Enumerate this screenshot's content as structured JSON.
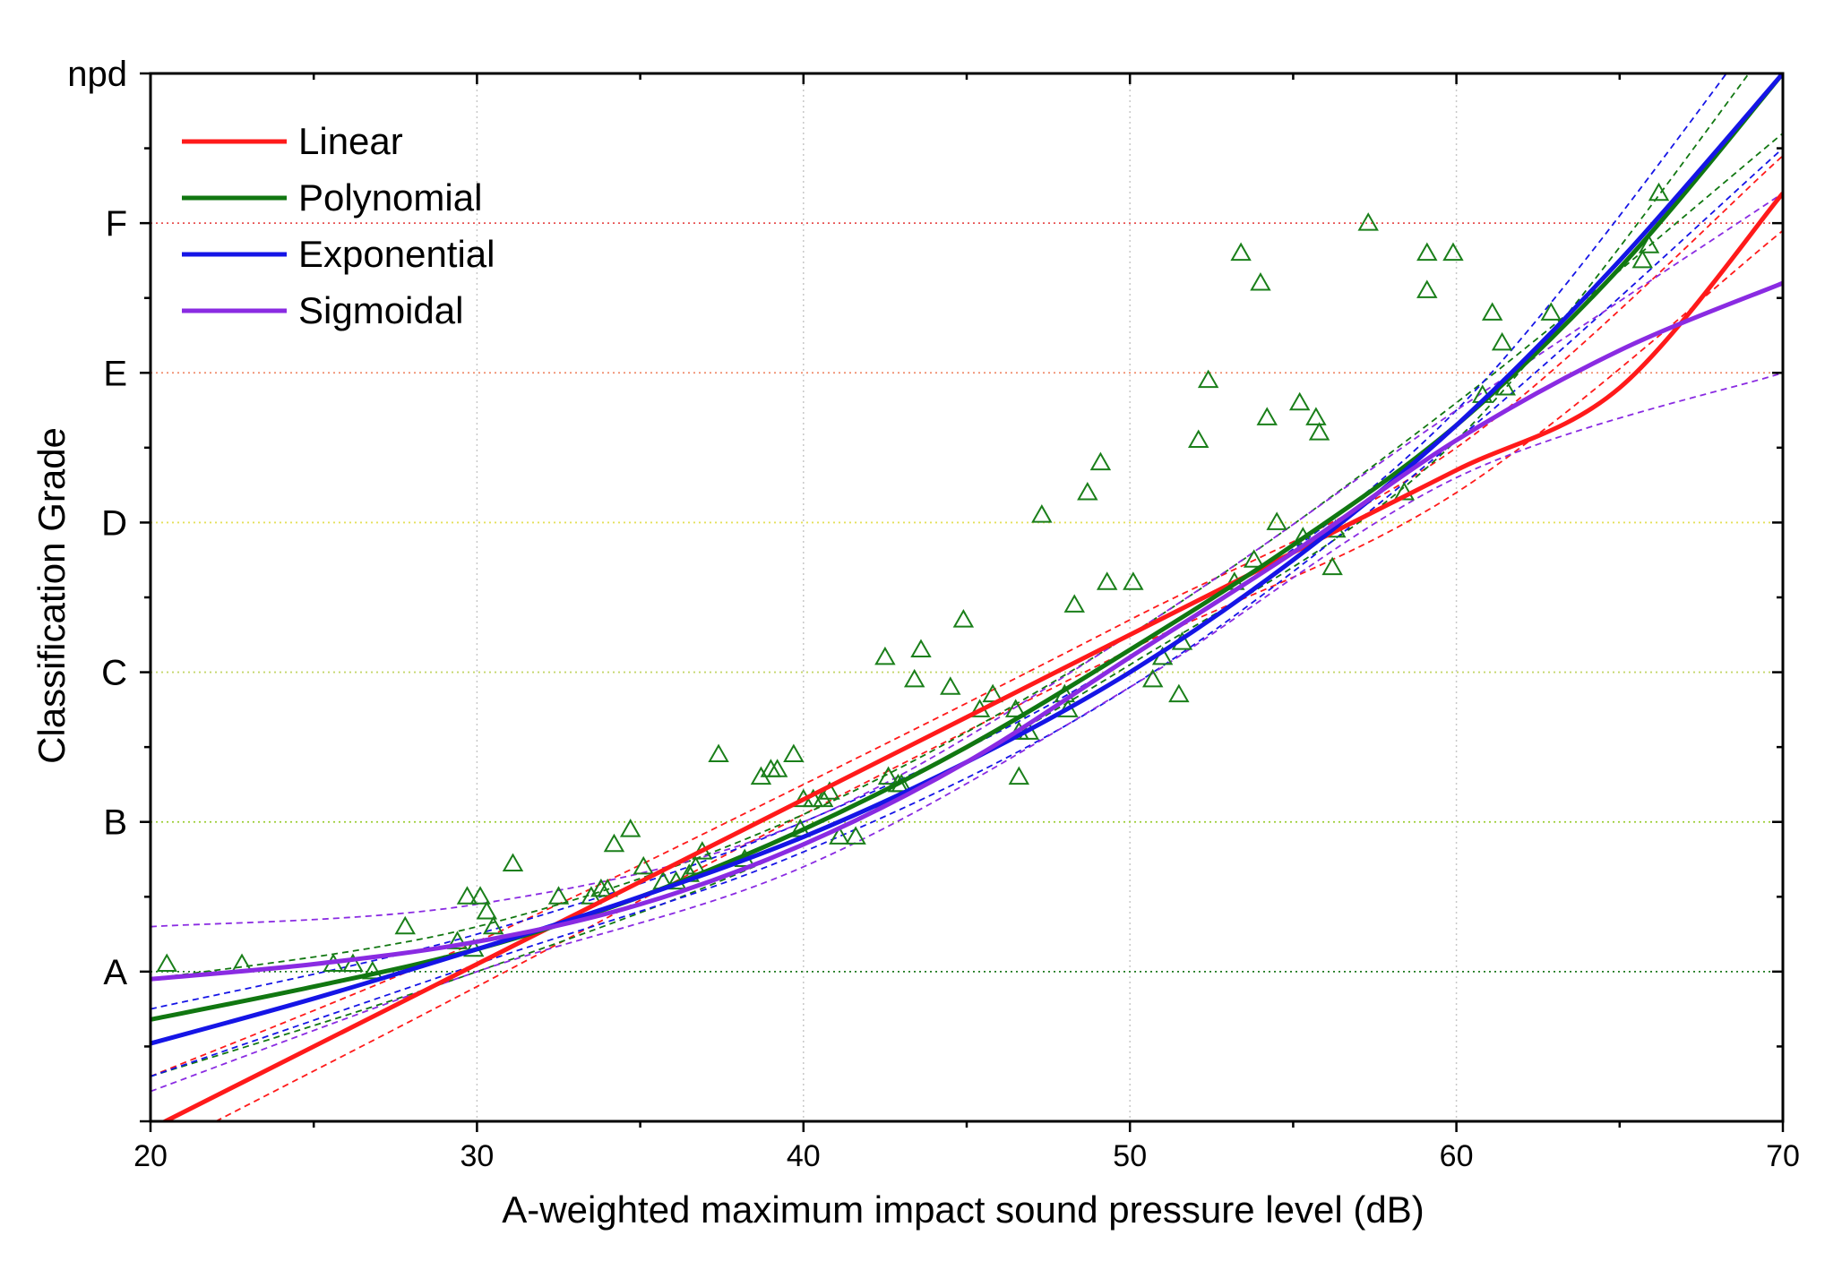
{
  "chart_data": {
    "type": "scatter",
    "xlabel": "A-weighted maximum impact sound pressure level (dB)",
    "ylabel": "Classification Grade",
    "xlim": [
      20,
      70
    ],
    "ylim": [
      0,
      7
    ],
    "x_ticks": [
      20,
      30,
      40,
      50,
      60,
      70
    ],
    "x_tick_labels": [
      "20",
      "30",
      "40",
      "50",
      "60",
      "70"
    ],
    "y_ticks": [
      1,
      2,
      3,
      4,
      5,
      6,
      7
    ],
    "y_tick_labels": [
      "A",
      "B",
      "C",
      "D",
      "E",
      "F",
      "npd"
    ],
    "grid": "dotted; horizontal lines colored per grade",
    "legend_position": "top-left",
    "colors": {
      "points": "#1a7f1a",
      "grid_vertical": "#c8c8c8",
      "grade_A": "#1f7a1f",
      "grade_B": "#9acd32",
      "grade_C": "#c5d66b",
      "grade_D": "#e5e05a",
      "grade_E": "#f08a6a",
      "grade_F": "#e85050"
    },
    "series": [
      {
        "name": "Linear",
        "kind": "fit",
        "color": "#ff1a1a",
        "x": [
          20,
          25,
          30,
          35,
          40,
          45,
          50,
          55,
          60,
          65,
          70
        ],
        "y": [
          -0.05,
          0.5,
          1.05,
          1.6,
          2.15,
          2.7,
          3.25,
          3.8,
          4.35,
          4.9,
          6.2
        ]
      },
      {
        "name": "Polynomial",
        "kind": "fit",
        "color": "#117711",
        "x": [
          20,
          25,
          30,
          35,
          40,
          45,
          50,
          55,
          60,
          65,
          70
        ],
        "y": [
          0.68,
          0.9,
          1.15,
          1.5,
          1.95,
          2.5,
          3.15,
          3.85,
          4.65,
          5.7,
          7.0
        ]
      },
      {
        "name": "Exponential",
        "kind": "fit",
        "color": "#1515e6",
        "x": [
          20,
          25,
          30,
          35,
          40,
          45,
          50,
          55,
          60,
          65,
          70
        ],
        "y": [
          0.52,
          0.82,
          1.15,
          1.5,
          1.9,
          2.4,
          3.0,
          3.75,
          4.65,
          5.75,
          7.0
        ]
      },
      {
        "name": "Sigmoidal",
        "kind": "fit",
        "color": "#8a2be2",
        "x": [
          20,
          25,
          30,
          35,
          40,
          45,
          50,
          55,
          60,
          65,
          70
        ],
        "y": [
          0.95,
          1.05,
          1.2,
          1.45,
          1.85,
          2.4,
          3.1,
          3.8,
          4.55,
          5.15,
          5.6
        ]
      },
      {
        "name": "",
        "kind": "band",
        "color": "#ff1a1a",
        "x": [
          20,
          30,
          40,
          50,
          60,
          70
        ],
        "y": [
          0.3,
          1.2,
          2.25,
          3.35,
          4.5,
          6.45
        ]
      },
      {
        "name": "",
        "kind": "band",
        "color": "#ff1a1a",
        "x": [
          22,
          30,
          40,
          50,
          60,
          70
        ],
        "y": [
          0.0,
          0.9,
          2.05,
          3.15,
          4.2,
          5.95
        ]
      },
      {
        "name": "",
        "kind": "band",
        "color": "#117711",
        "x": [
          20,
          30,
          40,
          50,
          60,
          70
        ],
        "y": [
          0.95,
          1.3,
          2.05,
          3.25,
          4.8,
          6.6
        ]
      },
      {
        "name": "",
        "kind": "band",
        "color": "#117711",
        "x": [
          20,
          30,
          40,
          50,
          60,
          70
        ],
        "y": [
          0.3,
          1.0,
          1.85,
          3.05,
          4.55,
          7.3
        ]
      },
      {
        "name": "",
        "kind": "band",
        "color": "#1515e6",
        "x": [
          20,
          30,
          40,
          50,
          60,
          70
        ],
        "y": [
          0.75,
          1.25,
          2.0,
          3.1,
          4.75,
          7.5
        ]
      },
      {
        "name": "",
        "kind": "band",
        "color": "#1515e6",
        "x": [
          20,
          30,
          40,
          50,
          60,
          70
        ],
        "y": [
          0.3,
          1.05,
          1.8,
          2.9,
          4.55,
          6.5
        ]
      },
      {
        "name": "",
        "kind": "band",
        "color": "#8a2be2",
        "x": [
          20,
          30,
          40,
          50,
          60,
          70
        ],
        "y": [
          1.3,
          1.45,
          2.0,
          3.25,
          4.75,
          6.2
        ]
      },
      {
        "name": "",
        "kind": "band",
        "color": "#8a2be2",
        "x": [
          20,
          30,
          40,
          50,
          60,
          70
        ],
        "y": [
          0.2,
          1.0,
          1.7,
          2.9,
          4.3,
          5.0
        ]
      },
      {
        "name": "",
        "kind": "points",
        "color": "#1a7f1a",
        "x": [
          20.5,
          22.8,
          25.6,
          26.2,
          26.8,
          27.8,
          29.4,
          29.7,
          29.9,
          30.1,
          30.3,
          30.5,
          31.1,
          32.5,
          33.5,
          33.8,
          34.0,
          34.2,
          34.7,
          35.1,
          35.7,
          36.1,
          36.5,
          36.7,
          36.9,
          38.2,
          37.4,
          38.7,
          39.0,
          39.2,
          39.7,
          39.9,
          40.0,
          40.3,
          40.6,
          40.8,
          41.1,
          41.6,
          42.5,
          42.6,
          42.9,
          43.0,
          43.4,
          43.6,
          44.5,
          44.9,
          45.4,
          45.8,
          46.5,
          46.6,
          46.6,
          46.9,
          47.3,
          48.0,
          48.1,
          48.3,
          48.7,
          49.1,
          49.3,
          50.1,
          50.7,
          51.0,
          51.5,
          51.6,
          52.1,
          52.4,
          53.2,
          53.4,
          53.8,
          54.0,
          54.2,
          54.5,
          55.2,
          55.3,
          55.7,
          55.8,
          56.2,
          56.3,
          57.3,
          58.4,
          59.1,
          59.1,
          59.9,
          60.8,
          61.1,
          61.4,
          61.5,
          62.9,
          65.7,
          65.9,
          66.2
        ],
        "y": [
          1.05,
          1.05,
          1.05,
          1.05,
          1.0,
          1.3,
          1.2,
          1.5,
          1.15,
          1.5,
          1.4,
          1.3,
          1.72,
          1.5,
          1.5,
          1.55,
          1.55,
          1.85,
          1.95,
          1.7,
          1.6,
          1.6,
          1.65,
          1.7,
          1.8,
          1.75,
          2.45,
          2.3,
          2.35,
          2.35,
          2.45,
          1.95,
          2.15,
          2.15,
          2.15,
          2.2,
          1.9,
          1.9,
          3.1,
          2.3,
          2.25,
          2.25,
          2.95,
          3.15,
          2.9,
          3.35,
          2.75,
          2.85,
          2.75,
          2.6,
          2.3,
          2.6,
          4.05,
          2.85,
          2.75,
          3.45,
          4.2,
          4.4,
          3.6,
          3.6,
          2.95,
          3.1,
          2.85,
          3.2,
          4.55,
          4.95,
          3.6,
          5.8,
          3.75,
          5.6,
          4.7,
          4.0,
          4.8,
          3.9,
          4.7,
          4.6,
          3.7,
          3.95,
          6.0,
          4.2,
          5.8,
          5.55,
          5.8,
          4.85,
          5.4,
          5.2,
          4.9,
          5.4,
          5.75,
          5.85,
          6.2
        ]
      }
    ]
  }
}
